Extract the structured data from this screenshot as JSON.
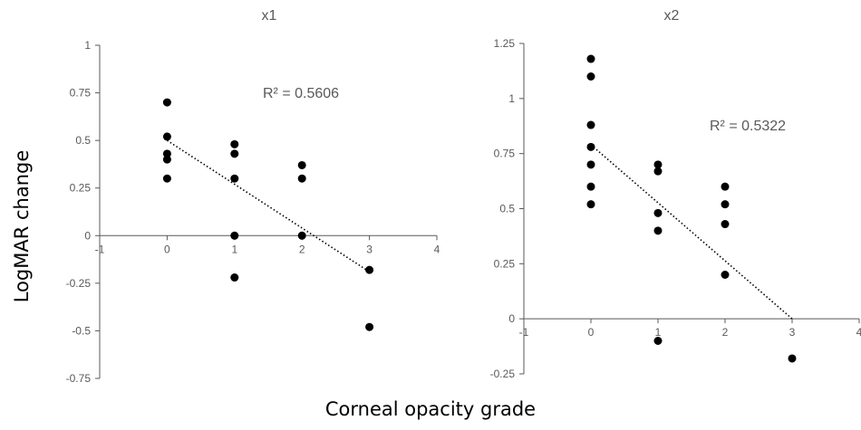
{
  "figure": {
    "ylabel": "LogMAR change",
    "xlabel": "Corneal opacity grade"
  },
  "chart_data": [
    {
      "type": "scatter",
      "title": "x1",
      "xlabel": "Corneal opacity grade",
      "ylabel": "LogMAR change",
      "xlim": [
        -1,
        4
      ],
      "ylim": [
        -0.75,
        1
      ],
      "x_ticks": [
        "-1",
        "0",
        "1",
        "2",
        "3",
        "4"
      ],
      "y_ticks": [
        "-0.75",
        "-0.5",
        "-0.25",
        "0",
        "0.25",
        "0.5",
        "0.75",
        "1"
      ],
      "grid": false,
      "legend": "none",
      "series": [
        {
          "points": [
            [
              0,
              0.7
            ],
            [
              0,
              0.52
            ],
            [
              0,
              0.43
            ],
            [
              0,
              0.4
            ],
            [
              0,
              0.3
            ],
            [
              1,
              0.48
            ],
            [
              1,
              0.43
            ],
            [
              1,
              0.3
            ],
            [
              1,
              0
            ],
            [
              1,
              -0.22
            ],
            [
              2,
              0.37
            ],
            [
              2,
              0.3
            ],
            [
              2,
              0
            ],
            [
              3,
              -0.18
            ],
            [
              3,
              -0.48
            ]
          ],
          "color": "#000000"
        }
      ],
      "trendline": {
        "type": "linear",
        "from": [
          0,
          0.5
        ],
        "to": [
          3,
          -0.19
        ],
        "style": "dotted"
      },
      "annotation": "R² = 0.5606"
    },
    {
      "type": "scatter",
      "title": "x2",
      "xlabel": "Corneal opacity grade",
      "ylabel": "LogMAR change",
      "xlim": [
        -1,
        4
      ],
      "ylim": [
        -0.25,
        1.25
      ],
      "x_ticks": [
        "-1",
        "0",
        "1",
        "2",
        "3",
        "4"
      ],
      "y_ticks": [
        "-0.25",
        "0",
        "0.25",
        "0.5",
        "0.75",
        "1",
        "1.25"
      ],
      "grid": false,
      "legend": "none",
      "series": [
        {
          "points": [
            [
              0,
              1.18
            ],
            [
              0,
              1.1
            ],
            [
              0,
              0.88
            ],
            [
              0,
              0.78
            ],
            [
              0,
              0.7
            ],
            [
              0,
              0.6
            ],
            [
              0,
              0.52
            ],
            [
              1,
              0.7
            ],
            [
              1,
              0.67
            ],
            [
              1,
              0.48
            ],
            [
              1,
              0.4
            ],
            [
              1,
              -0.1
            ],
            [
              2,
              0.6
            ],
            [
              2,
              0.52
            ],
            [
              2,
              0.43
            ],
            [
              2,
              0.2
            ],
            [
              3,
              -0.18
            ]
          ],
          "color": "#000000"
        }
      ],
      "trendline": {
        "type": "linear",
        "from": [
          0,
          0.79
        ],
        "to": [
          3,
          0
        ],
        "style": "dotted"
      },
      "annotation": "R² = 0.5322"
    }
  ]
}
